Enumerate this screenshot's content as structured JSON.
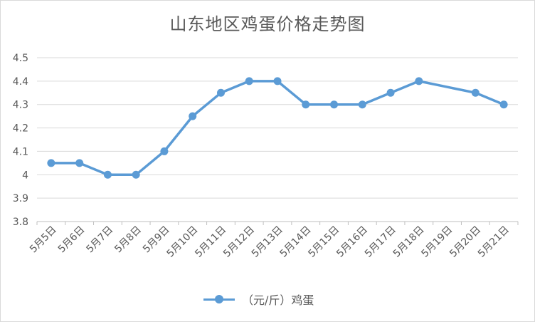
{
  "chart_data": {
    "type": "line",
    "title": "山东地区鸡蛋价格走势图",
    "categories": [
      "5月5日",
      "5月6日",
      "5月7日",
      "5月8日",
      "5月9日",
      "5月10日",
      "5月11日",
      "5月12日",
      "5月13日",
      "5月14日",
      "5月15日",
      "5月16日",
      "5月17日",
      "5月18日",
      "5月19日",
      "5月20日",
      "5月21日"
    ],
    "series": [
      {
        "name": "（元/斤）鸡蛋",
        "values": [
          4.05,
          4.05,
          4.0,
          4.0,
          4.1,
          4.25,
          4.35,
          4.4,
          4.4,
          4.3,
          4.3,
          4.3,
          4.35,
          4.4,
          null,
          4.35,
          4.3
        ],
        "color": "#5b9bd5"
      }
    ],
    "yticks": [
      "3.8",
      "3.9",
      "4",
      "4.1",
      "4.2",
      "4.3",
      "4.4",
      "4.5"
    ],
    "ylim": [
      3.8,
      4.5
    ],
    "grid": true,
    "legend_position": "bottom"
  }
}
